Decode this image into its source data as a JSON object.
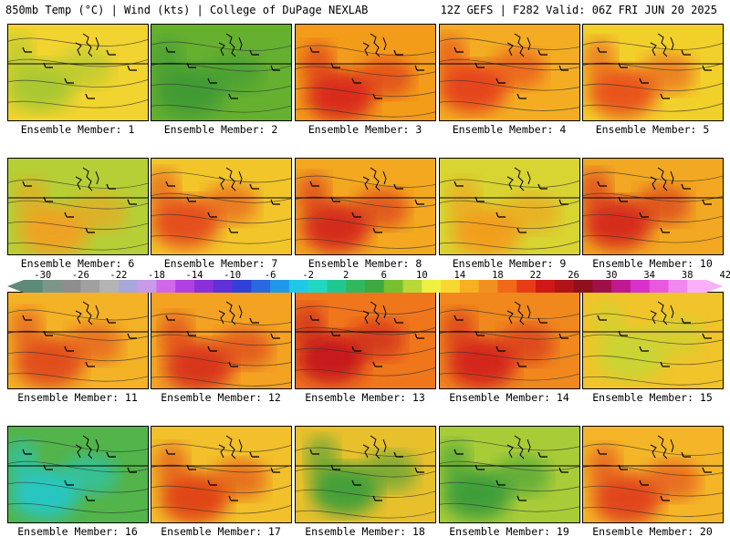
{
  "header": {
    "left": "850mb Temp (°C) | Wind (kts) | College of DuPage NEXLAB",
    "right": "12Z GEFS | F282 Valid: 06Z FRI JUN 20 2025"
  },
  "panels": [
    {
      "label": "Ensemble Member: 1",
      "base": "#f2d430",
      "blob": "#a8c832"
    },
    {
      "label": "Ensemble Member: 2",
      "base": "#66b030",
      "blob": "#3f9a35"
    },
    {
      "label": "Ensemble Member: 3",
      "base": "#f39c1a",
      "blob": "#d8281a"
    },
    {
      "label": "Ensemble Member: 4",
      "base": "#f4ad22",
      "blob": "#e5401a"
    },
    {
      "label": "Ensemble Member: 5",
      "base": "#f2d02a",
      "blob": "#e8501c"
    },
    {
      "label": "Ensemble Member: 6",
      "base": "#b6cf36",
      "blob": "#f2a020"
    },
    {
      "label": "Ensemble Member: 7",
      "base": "#f2c62a",
      "blob": "#e44a1a"
    },
    {
      "label": "Ensemble Member: 8",
      "base": "#f3a820",
      "blob": "#d3281a"
    },
    {
      "label": "Ensemble Member: 9",
      "base": "#d8d432",
      "blob": "#f39c1c"
    },
    {
      "label": "Ensemble Member: 10",
      "base": "#f2a822",
      "blob": "#d4281a"
    },
    {
      "label": "Ensemble Member: 11",
      "base": "#f4b226",
      "blob": "#e04a1a"
    },
    {
      "label": "Ensemble Member: 12",
      "base": "#f3a222",
      "blob": "#d8321a"
    },
    {
      "label": "Ensemble Member: 13",
      "base": "#f0761c",
      "blob": "#c4181a"
    },
    {
      "label": "Ensemble Member: 14",
      "base": "#f0881e",
      "blob": "#d2201a"
    },
    {
      "label": "Ensemble Member: 15",
      "base": "#f0c42a",
      "blob": "#c8d636"
    },
    {
      "label": "Ensemble Member: 16",
      "base": "#52b44a",
      "blob": "#28c8c8"
    },
    {
      "label": "Ensemble Member: 17",
      "base": "#f2c02a",
      "blob": "#e04018"
    },
    {
      "label": "Ensemble Member: 18",
      "base": "#e8c02c",
      "blob": "#3c9e3a"
    },
    {
      "label": "Ensemble Member: 19",
      "base": "#a8cc38",
      "blob": "#3a9c3a"
    },
    {
      "label": "Ensemble Member: 20",
      "base": "#f4b628",
      "blob": "#e0401c"
    }
  ],
  "colorbar": {
    "ticks": [
      "-30",
      "-26",
      "-22",
      "-18",
      "-14",
      "-10",
      "-6",
      "-2",
      "2",
      "6",
      "10",
      "14",
      "18",
      "22",
      "26",
      "30",
      "34",
      "38",
      "42"
    ],
    "colors": [
      "#5e8a78",
      "#7e9688",
      "#8e8e8e",
      "#a0a0a0",
      "#b4b4b4",
      "#a8a8d8",
      "#c89ae8",
      "#d068e8",
      "#b040e0",
      "#8a30d8",
      "#6030d8",
      "#3040d8",
      "#2868e0",
      "#2098e8",
      "#20c8e8",
      "#20d8c0",
      "#20c890",
      "#30b860",
      "#40a840",
      "#78c030",
      "#b8d838",
      "#f0f040",
      "#f8d830",
      "#f8b020",
      "#f09020",
      "#f06818",
      "#e83c18",
      "#d01818",
      "#b01418",
      "#901020",
      "#a01048",
      "#c01890",
      "#d830c8",
      "#e858e0",
      "#f088f0",
      "#f8b0f8"
    ]
  }
}
